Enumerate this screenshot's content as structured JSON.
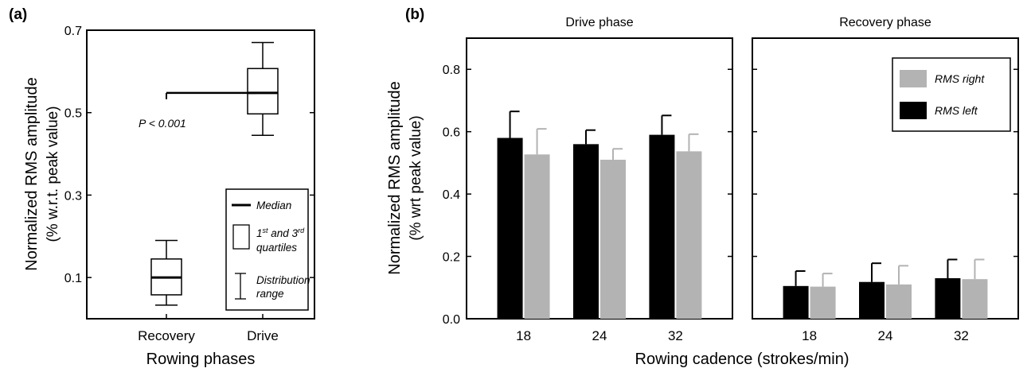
{
  "chart_data": [
    {
      "panel_label": "(a)",
      "type": "box",
      "ylabel_line1": "Normalized RMS amplitude",
      "ylabel_line2": "(% w.r.t. peak value)",
      "xlabel": "Rowing phases",
      "ylim": [
        0.0,
        0.7
      ],
      "yticks": [
        "0.1",
        "0.3",
        "0.5",
        "0.7"
      ],
      "categories": [
        "Recovery",
        "Drive"
      ],
      "boxes": [
        {
          "category": "Recovery",
          "min": 0.033,
          "q1": 0.058,
          "median": 0.1,
          "q3": 0.145,
          "max": 0.19
        },
        {
          "category": "Drive",
          "min": 0.445,
          "q1": 0.497,
          "median": 0.548,
          "q3": 0.607,
          "max": 0.67
        }
      ],
      "annotation": {
        "text": "P < 0.001",
        "y": 0.548
      },
      "legend": {
        "placement": "bottom-right",
        "median_label": "Median",
        "quartile_sup1": "st",
        "quartile_and": " and 3",
        "quartile_sup2": "rd",
        "quartile_line1_prefix": "1",
        "quartile_line2": "quartiles",
        "range_line1": "Distribution",
        "range_line2": "range"
      },
      "grid": false
    },
    {
      "panel_label": "(b)",
      "type": "bar",
      "ylabel_line1": "Normalized RMS amplitude",
      "ylabel_line2": "(% wrt peak value)",
      "xlabel": "Rowing cadence (strokes/min)",
      "ylim": [
        0.0,
        0.9
      ],
      "yticks": [
        "0.0",
        "0.2",
        "0.4",
        "0.6",
        "0.8"
      ],
      "categories": [
        "18",
        "24",
        "32"
      ],
      "subplots": [
        {
          "title": "Drive phase",
          "series": [
            {
              "name": "RMS left",
              "color": "#000000",
              "values": [
                0.58,
                0.56,
                0.59
              ],
              "errors": [
                0.085,
                0.045,
                0.062
              ]
            },
            {
              "name": "RMS right",
              "color": "#b3b3b3",
              "values": [
                0.527,
                0.51,
                0.537
              ],
              "errors": [
                0.082,
                0.035,
                0.055
              ]
            }
          ]
        },
        {
          "title": "Recovery phase",
          "series": [
            {
              "name": "RMS left",
              "color": "#000000",
              "values": [
                0.105,
                0.118,
                0.13
              ],
              "errors": [
                0.048,
                0.06,
                0.06
              ]
            },
            {
              "name": "RMS right",
              "color": "#b3b3b3",
              "values": [
                0.103,
                0.11,
                0.127
              ],
              "errors": [
                0.042,
                0.06,
                0.063
              ]
            }
          ]
        }
      ],
      "legend": {
        "placement": "top-right",
        "entries": [
          "RMS right",
          "RMS left"
        ]
      },
      "grid": false
    }
  ]
}
